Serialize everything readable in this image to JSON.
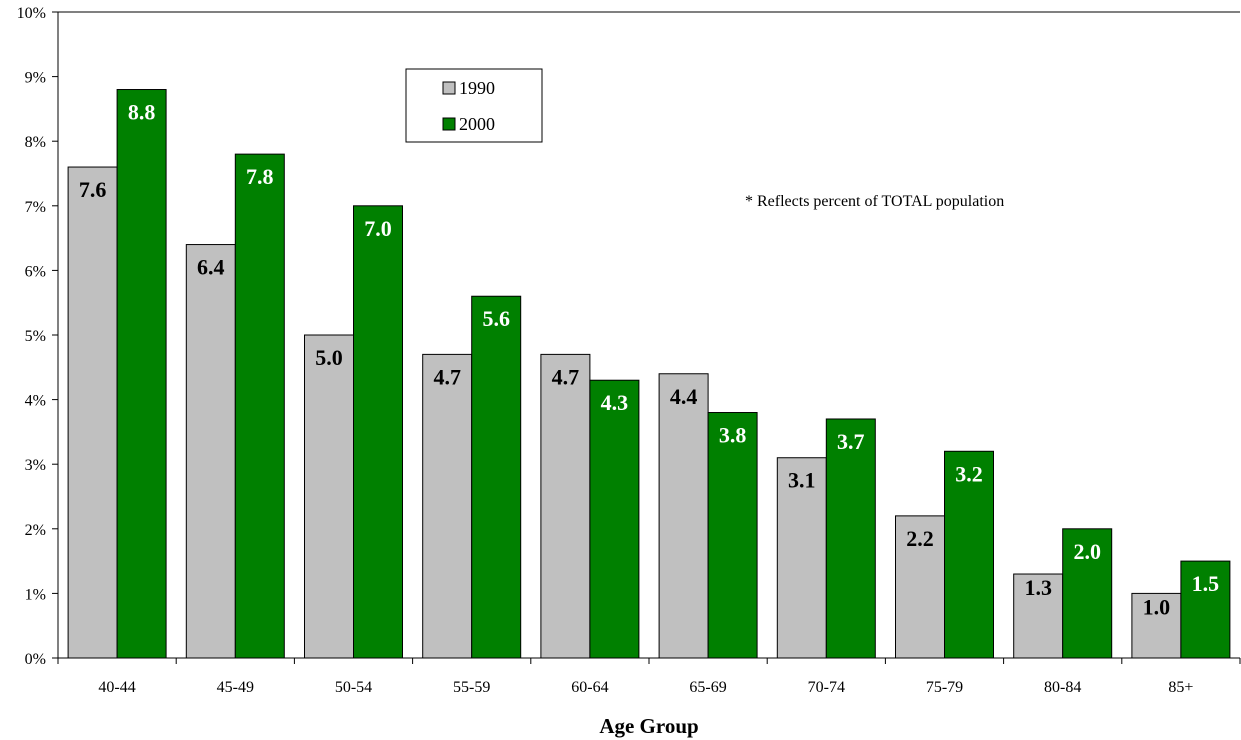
{
  "chart_data": {
    "type": "bar",
    "categories": [
      "40-44",
      "45-49",
      "50-54",
      "55-59",
      "60-64",
      "65-69",
      "70-74",
      "75-79",
      "80-84",
      "85+"
    ],
    "series": [
      {
        "name": "1990",
        "values": [
          7.6,
          6.4,
          5.0,
          4.7,
          4.7,
          4.4,
          3.1,
          2.2,
          1.3,
          1.0
        ],
        "labels": [
          "7.6",
          "6.4",
          "5.0",
          "4.7",
          "4.7",
          "4.4",
          "3.1",
          "2.2",
          "1.3",
          "1.0"
        ],
        "color": "#c0c0c0",
        "label_color": "#000000"
      },
      {
        "name": "2000",
        "values": [
          8.8,
          7.8,
          7.0,
          5.6,
          4.3,
          3.8,
          3.7,
          3.2,
          2.0,
          1.5
        ],
        "labels": [
          "8.8",
          "7.8",
          "7.0",
          "5.6",
          "4.3",
          "3.8",
          "3.7",
          "3.2",
          "2.0",
          "1.5"
        ],
        "color": "#008000",
        "label_color": "#ffffff"
      }
    ],
    "title": "",
    "xlabel": "Age Group",
    "ylabel": "",
    "ylim": [
      0,
      10
    ],
    "yticks": [
      "0%",
      "1%",
      "2%",
      "3%",
      "4%",
      "5%",
      "6%",
      "7%",
      "8%",
      "9%",
      "10%"
    ],
    "grid": false,
    "legend": "top-center",
    "annotation": "* Reflects percent of TOTAL population"
  }
}
